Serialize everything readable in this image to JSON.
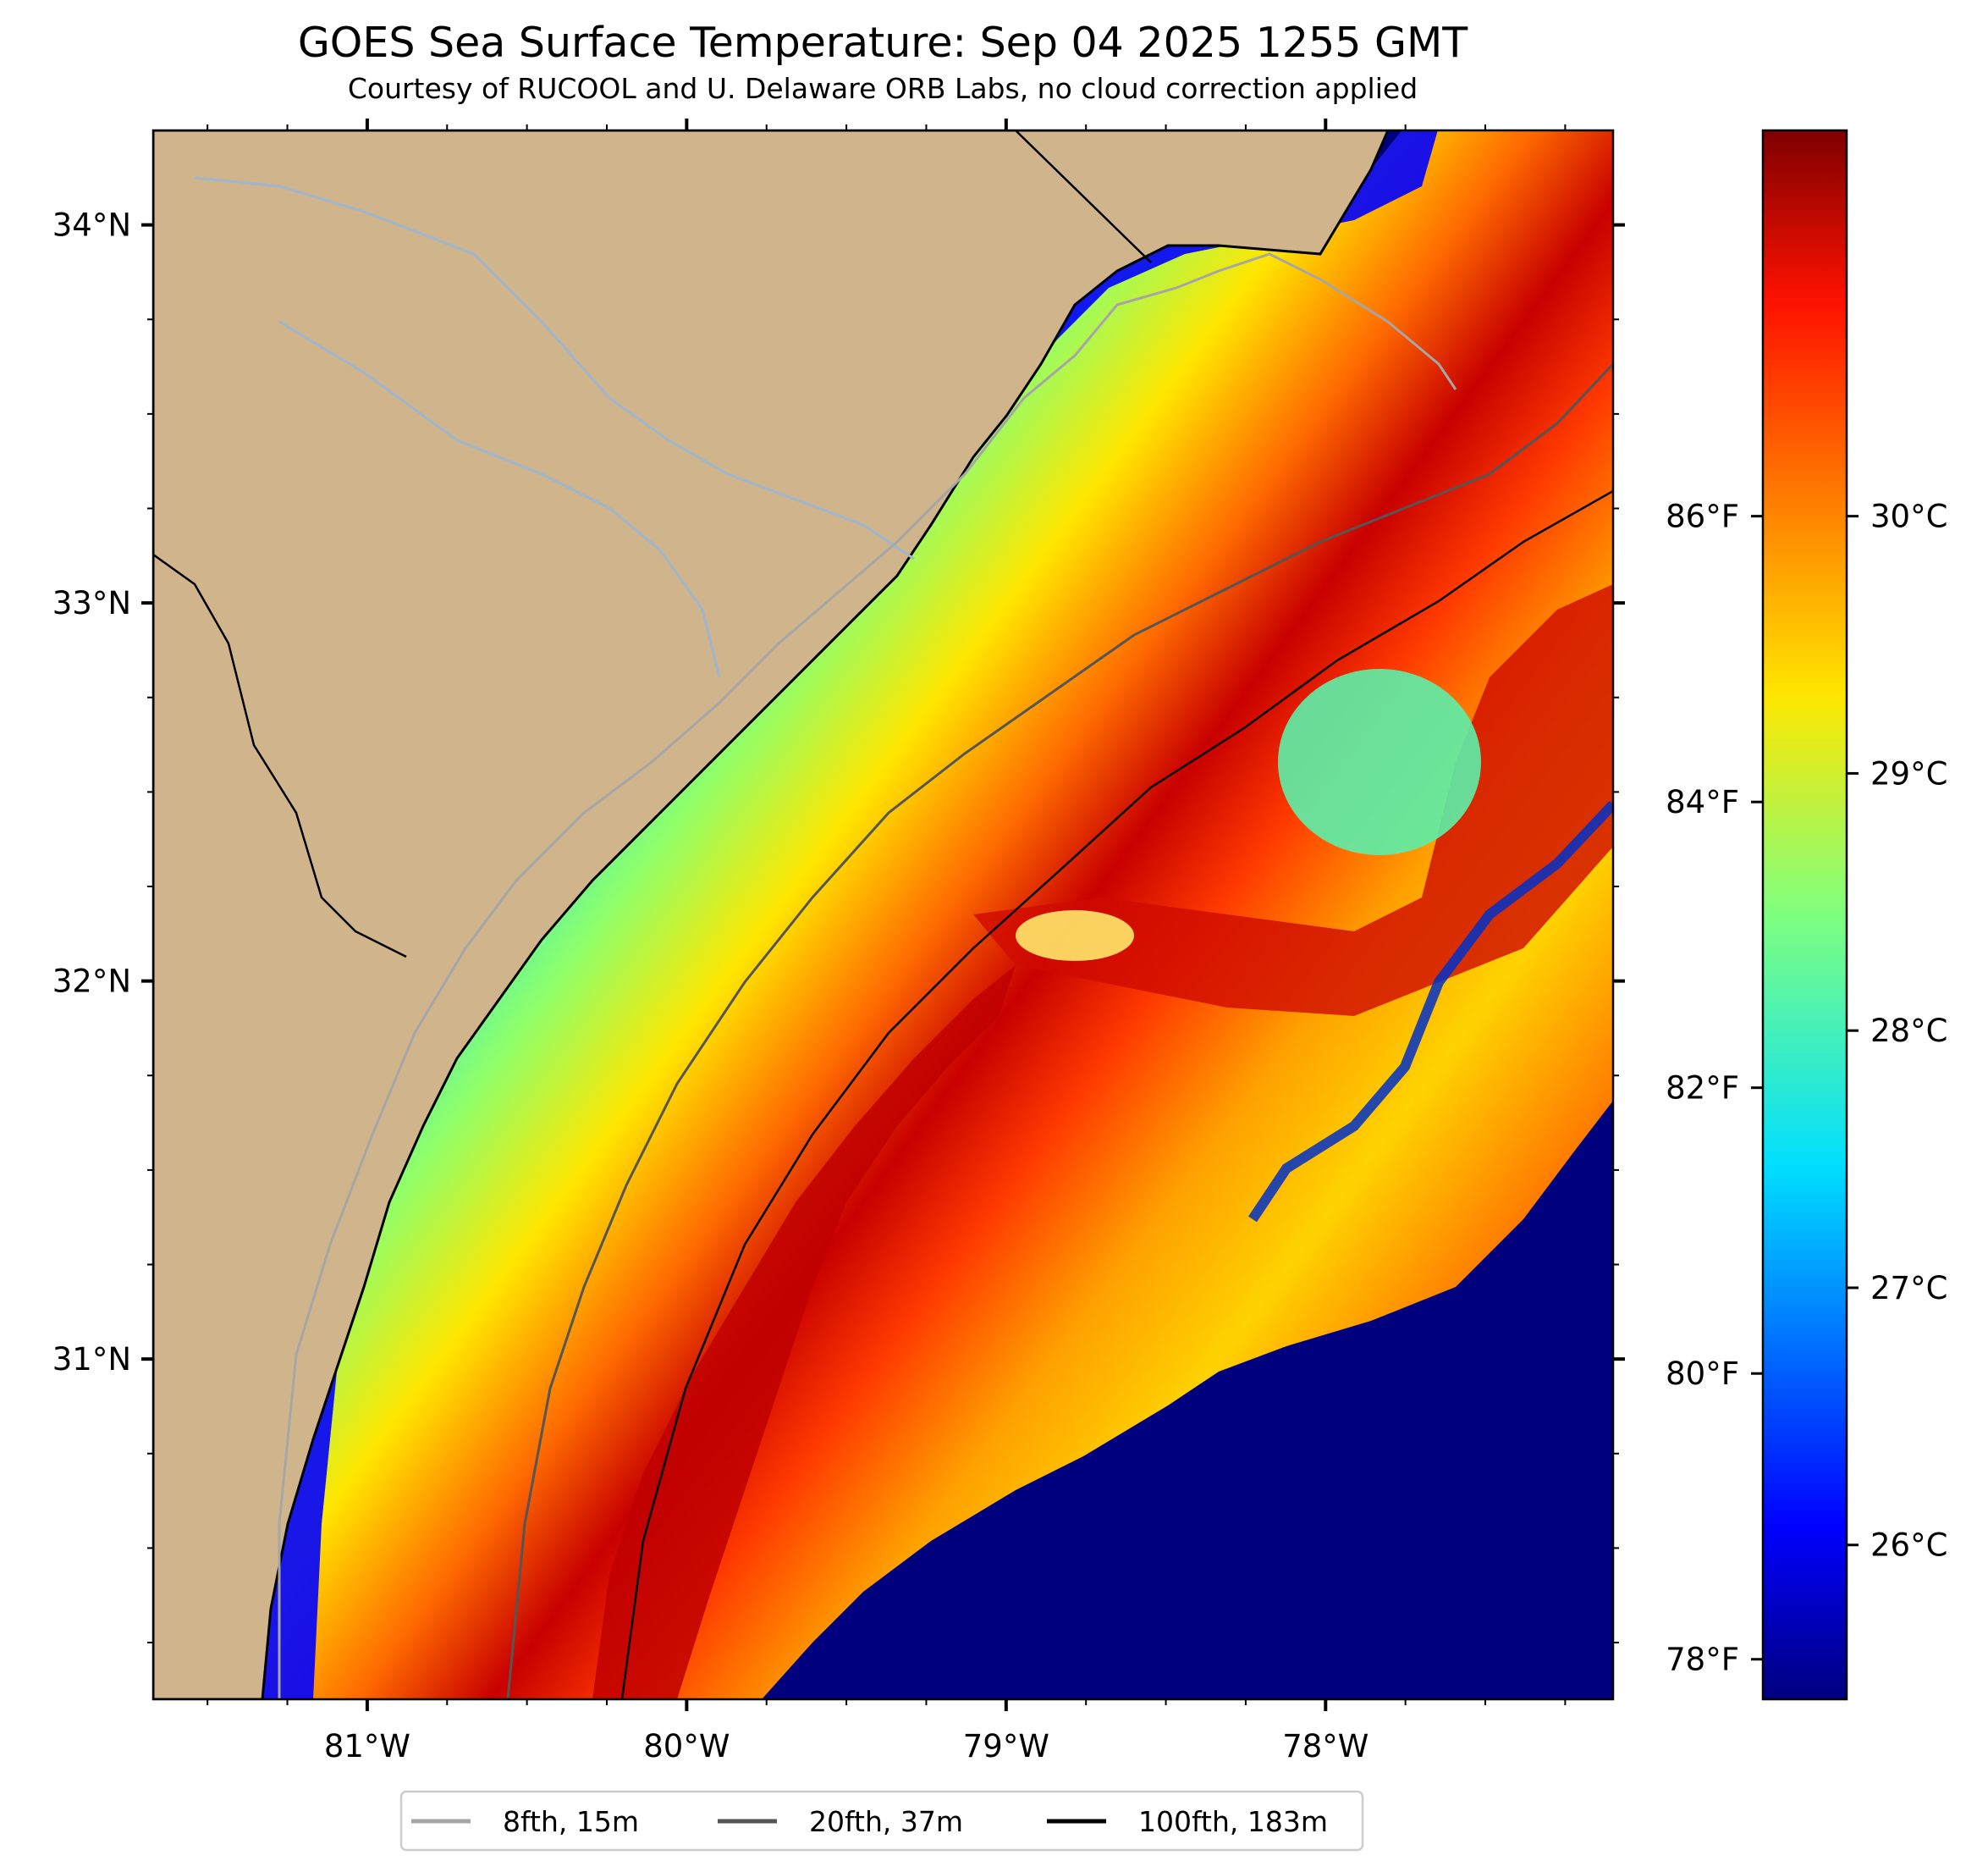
{
  "header": {
    "title": "GOES Sea Surface Temperature: Sep 04 2025 1255 GMT",
    "subtitle": "Courtesy of RUCOOL and U. Delaware ORB Labs, no cloud correction applied"
  },
  "map": {
    "lon_range": [
      -81.67,
      -77.1
    ],
    "lat_range": [
      30.1,
      34.25
    ],
    "lon_ticks": [
      {
        "value": -81,
        "label": "81°W"
      },
      {
        "value": -80,
        "label": "80°W"
      },
      {
        "value": -79,
        "label": "79°W"
      },
      {
        "value": -78,
        "label": "78°W"
      }
    ],
    "lat_ticks": [
      {
        "value": 34,
        "label": "34°N"
      },
      {
        "value": 33,
        "label": "33°N"
      },
      {
        "value": 32,
        "label": "32°N"
      },
      {
        "value": 31,
        "label": "31°N"
      }
    ],
    "land_color": "#d0b48c",
    "no_data_color": "#ffffff",
    "coast_color": "#000000",
    "river_color": "#9fb6cc"
  },
  "colorbar": {
    "cmap": "jet",
    "celsius_range": [
      25.4,
      31.5
    ],
    "celsius_ticks": [
      {
        "value": 26,
        "label": "26°C"
      },
      {
        "value": 27,
        "label": "27°C"
      },
      {
        "value": 28,
        "label": "28°C"
      },
      {
        "value": 29,
        "label": "29°C"
      },
      {
        "value": 30,
        "label": "30°C"
      }
    ],
    "fahrenheit_ticks": [
      {
        "value": 78,
        "label": "78°F"
      },
      {
        "value": 80,
        "label": "80°F"
      },
      {
        "value": 82,
        "label": "82°F"
      },
      {
        "value": 84,
        "label": "84°F"
      },
      {
        "value": 86,
        "label": "86°F"
      }
    ]
  },
  "legend": {
    "items": [
      {
        "label": "8fth, 15m",
        "color": "#a6a6a6"
      },
      {
        "label": "20fth, 37m",
        "color": "#555555"
      },
      {
        "label": "100fth, 183m",
        "color": "#000000"
      }
    ]
  }
}
